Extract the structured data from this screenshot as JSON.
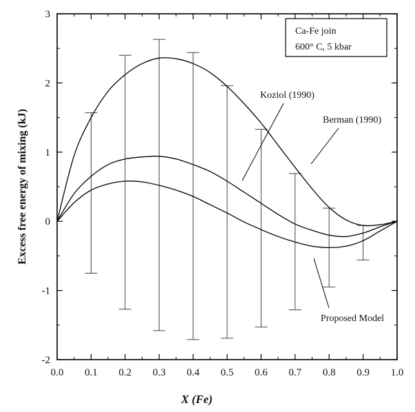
{
  "chart_data": {
    "type": "line",
    "xlabel": "X (Fe)",
    "ylabel": "Excess free energy of mixing (kJ)",
    "xlim": [
      0.0,
      1.0
    ],
    "ylim": [
      -2,
      3
    ],
    "x_ticks": [
      "0.0",
      "0.1",
      "0.2",
      "0.3",
      "0.4",
      "0.5",
      "0.6",
      "0.7",
      "0.8",
      "0.9",
      "1.0"
    ],
    "y_ticks": [
      "-2",
      "-1",
      "0",
      "1",
      "2",
      "3"
    ],
    "legend_box": [
      "Ca-Fe join",
      "600° C, 5 kbar"
    ],
    "x": [
      0.0,
      0.05,
      0.1,
      0.15,
      0.2,
      0.25,
      0.3,
      0.35,
      0.4,
      0.45,
      0.5,
      0.55,
      0.6,
      0.65,
      0.7,
      0.75,
      0.8,
      0.85,
      0.9,
      0.95,
      1.0
    ],
    "series": [
      {
        "name": "Berman (1990)",
        "values": [
          0.0,
          0.95,
          1.5,
          1.88,
          2.12,
          2.28,
          2.36,
          2.35,
          2.28,
          2.15,
          1.95,
          1.7,
          1.42,
          1.1,
          0.78,
          0.47,
          0.2,
          0.02,
          -0.06,
          -0.05,
          0.0
        ]
      },
      {
        "name": "Koziol (1990)",
        "values": [
          0.0,
          0.4,
          0.65,
          0.82,
          0.9,
          0.93,
          0.94,
          0.9,
          0.82,
          0.72,
          0.58,
          0.42,
          0.26,
          0.1,
          -0.04,
          -0.13,
          -0.2,
          -0.22,
          -0.17,
          -0.08,
          0.0
        ]
      },
      {
        "name": "Proposed Model",
        "values": [
          0.0,
          0.27,
          0.45,
          0.54,
          0.58,
          0.57,
          0.52,
          0.45,
          0.36,
          0.24,
          0.12,
          -0.01,
          -0.12,
          -0.22,
          -0.3,
          -0.36,
          -0.38,
          -0.36,
          -0.28,
          -0.14,
          0.0
        ]
      }
    ],
    "error_bars": [
      {
        "x": 0.1,
        "low": -0.75,
        "high": 1.57
      },
      {
        "x": 0.2,
        "low": -1.27,
        "high": 2.4
      },
      {
        "x": 0.3,
        "low": -1.58,
        "high": 2.63
      },
      {
        "x": 0.4,
        "low": -1.71,
        "high": 2.44
      },
      {
        "x": 0.5,
        "low": -1.69,
        "high": 1.96
      },
      {
        "x": 0.6,
        "low": -1.53,
        "high": 1.33
      },
      {
        "x": 0.7,
        "low": -1.28,
        "high": 0.69
      },
      {
        "x": 0.8,
        "low": -0.95,
        "high": 0.19
      },
      {
        "x": 0.9,
        "low": -0.56,
        "high": -0.06
      }
    ],
    "grid": false
  }
}
